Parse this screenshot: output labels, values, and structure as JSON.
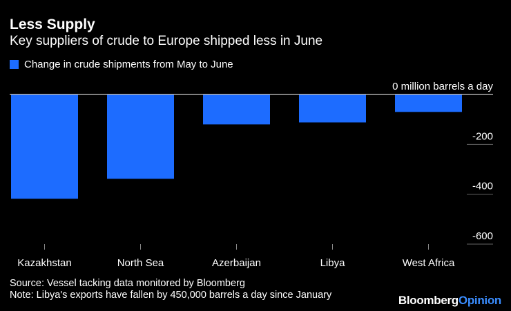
{
  "header": {
    "title": "Less Supply",
    "subtitle": "Key suppliers of crude to Europe shipped less in June"
  },
  "legend": {
    "label": "Change in crude shipments from May to June"
  },
  "chart_data": {
    "type": "bar",
    "title": "Less Supply",
    "subtitle": "Key suppliers of crude to Europe shipped less in June",
    "categories": [
      "Kazakhstan",
      "North Sea",
      "Azerbaijan",
      "Libya",
      "West Africa"
    ],
    "series": [
      {
        "name": "Change in crude shipments from May to June",
        "values": [
          -418,
          -338,
          -120,
          -112,
          -70
        ],
        "color": "#1d6cff"
      }
    ],
    "ylabel": "million barrels a day",
    "ylim": [
      -600,
      0
    ],
    "yticks": [
      0,
      -200,
      -400,
      -600
    ],
    "ytick_labels": [
      "0 million barrels a day",
      "-200",
      "-400",
      "-600"
    ],
    "grid": true,
    "legend_position": "top-left"
  },
  "footer": {
    "source": "Source: Vessel tacking data monitored by Bloomberg",
    "note": "Note: Libya's exports have fallen by 450,000 barrels a day since January"
  },
  "logo": {
    "part1": "Bloomberg",
    "part2": "Opinion"
  }
}
